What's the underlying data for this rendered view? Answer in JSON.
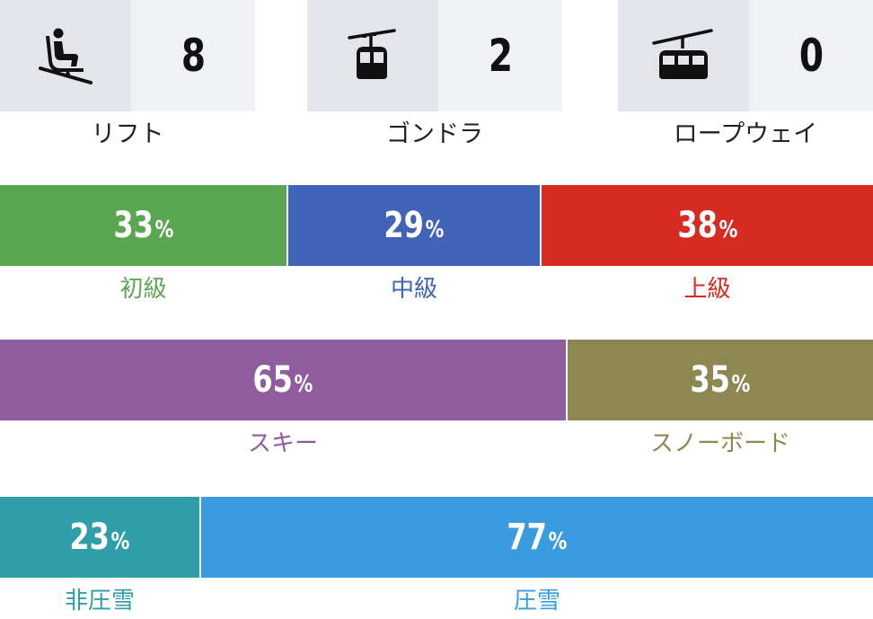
{
  "lifts": [
    {
      "label": "リフト",
      "count": "8",
      "icon": "chairlift-icon"
    },
    {
      "label": "ゴンドラ",
      "count": "2",
      "icon": "gondola-icon"
    },
    {
      "label": "ロープウェイ",
      "count": "0",
      "icon": "ropeway-icon"
    }
  ],
  "chart_data": [
    {
      "type": "bar",
      "stacked": true,
      "orientation": "horizontal",
      "unit": "%",
      "categories": [
        "初級",
        "中級",
        "上級"
      ],
      "values": [
        33,
        29,
        38
      ],
      "colors": [
        "#5ba651",
        "#3f64b8",
        "#d62b23"
      ]
    },
    {
      "type": "bar",
      "stacked": true,
      "orientation": "horizontal",
      "unit": "%",
      "categories": [
        "スキー",
        "スノーボード"
      ],
      "values": [
        65,
        35
      ],
      "colors": [
        "#8f5c9d",
        "#8f8751"
      ]
    },
    {
      "type": "bar",
      "stacked": true,
      "orientation": "horizontal",
      "unit": "%",
      "categories": [
        "非圧雪",
        "圧雪"
      ],
      "values": [
        23,
        77
      ],
      "colors": [
        "#2f9ea8",
        "#3b9be0"
      ]
    }
  ]
}
